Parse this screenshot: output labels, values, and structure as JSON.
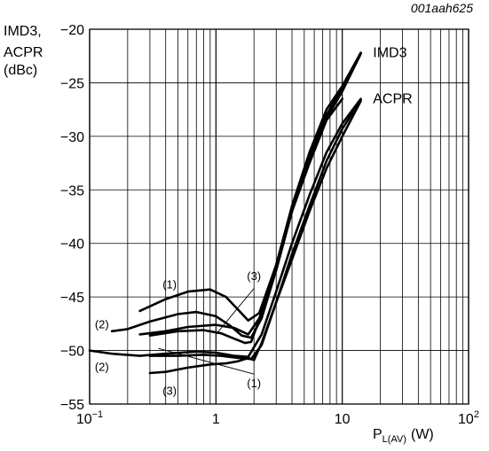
{
  "header": {
    "doc_id": "001aah625"
  },
  "chart_data": {
    "type": "line",
    "ylabel_lines": [
      "IMD3,",
      "ACPR",
      "(dBc)"
    ],
    "xlabel_main": "P",
    "xlabel_sub": "L(AV)",
    "xlabel_unit": "(W)",
    "x_scale": "log",
    "xlim": [
      0.1,
      100
    ],
    "ylim": [
      -55,
      -20
    ],
    "x_ticks": [
      {
        "value": 0.1,
        "base": "10",
        "exp": "−1"
      },
      {
        "value": 1,
        "base": "1",
        "exp": ""
      },
      {
        "value": 10,
        "base": "10",
        "exp": ""
      },
      {
        "value": 100,
        "base": "10",
        "exp": "2"
      }
    ],
    "y_ticks": [
      {
        "value": -20,
        "label": "−20"
      },
      {
        "value": -25,
        "label": "−25"
      },
      {
        "value": -30,
        "label": "−30"
      },
      {
        "value": -35,
        "label": "−35"
      },
      {
        "value": -40,
        "label": "−40"
      },
      {
        "value": -45,
        "label": "−45"
      },
      {
        "value": -50,
        "label": "−50"
      },
      {
        "value": -55,
        "label": "−55"
      }
    ],
    "grid": true,
    "series": [
      {
        "group": "IMD3",
        "curve": "(1)",
        "x": [
          0.25,
          0.4,
          0.6,
          0.9,
          1.2,
          1.5,
          1.8,
          2.2,
          3,
          4,
          5.5,
          7.5,
          10,
          14
        ],
        "y": [
          -46.3,
          -45.2,
          -44.5,
          -44.3,
          -45.0,
          -46.2,
          -47.2,
          -46.5,
          -42,
          -36.5,
          -31.5,
          -27.5,
          -25.3,
          -22.2
        ]
      },
      {
        "group": "IMD3",
        "curve": "(2)",
        "x": [
          0.15,
          0.2,
          0.3,
          0.5,
          0.7,
          1.0,
          1.3,
          1.6,
          1.9,
          2.3,
          3,
          4,
          5.5,
          7.5,
          10,
          14
        ],
        "y": [
          -48.2,
          -48.0,
          -47.3,
          -46.6,
          -46.4,
          -46.8,
          -47.7,
          -48.6,
          -48.8,
          -47.0,
          -42.5,
          -37,
          -32,
          -28,
          -25.5,
          -22.2
        ]
      },
      {
        "group": "IMD3",
        "curve": "(3)",
        "x": [
          0.25,
          0.4,
          0.6,
          1.0,
          1.4,
          1.8,
          2.2,
          3,
          4,
          5.5,
          7.5,
          10,
          14
        ],
        "y": [
          -48.5,
          -48.2,
          -47.8,
          -47.6,
          -47.9,
          -48.5,
          -47.0,
          -42.5,
          -37,
          -32.3,
          -28.3,
          -25.8,
          -22.3
        ]
      },
      {
        "group": "IMD3",
        "curve": "(2)",
        "x": [
          0.3,
          0.5,
          0.8,
          1.1,
          1.4,
          1.7,
          1.9,
          2.3,
          3,
          4,
          5.5,
          7.5,
          10
        ],
        "y": [
          -48.6,
          -48.2,
          -48.1,
          -48.4,
          -48.9,
          -49.3,
          -49.2,
          -46.5,
          -42,
          -37,
          -32.5,
          -28.5,
          -26.5
        ]
      },
      {
        "group": "ACPR",
        "curve": "(2)",
        "x": [
          0.1,
          0.15,
          0.25,
          0.4,
          0.7,
          1.0,
          1.4,
          1.8,
          2.3,
          3,
          4,
          5.5,
          7.5,
          10,
          14
        ],
        "y": [
          -50.0,
          -50.3,
          -50.5,
          -50.3,
          -50.1,
          -50.2,
          -50.5,
          -50.6,
          -48.5,
          -44.5,
          -40,
          -35.5,
          -31.5,
          -28.8,
          -26.5
        ]
      },
      {
        "group": "ACPR",
        "curve": "(1)",
        "x": [
          0.3,
          0.5,
          0.8,
          1.1,
          1.5,
          1.9,
          2.3,
          3,
          4,
          5.5,
          7.5,
          10,
          14
        ],
        "y": [
          -50.5,
          -50.5,
          -50.4,
          -50.5,
          -50.7,
          -50.8,
          -49.5,
          -45.5,
          -41,
          -36.5,
          -32.3,
          -29.3,
          -26.6
        ]
      },
      {
        "group": "ACPR",
        "curve": "(3)",
        "x": [
          0.3,
          0.4,
          0.6,
          0.9,
          1.2,
          1.5,
          1.8,
          2.0,
          2.3,
          3,
          4,
          5.5,
          7.5,
          10,
          14
        ],
        "y": [
          -52.1,
          -52.0,
          -51.6,
          -51.3,
          -51.2,
          -51.0,
          -50.7,
          -50.9,
          -49.3,
          -45.5,
          -41.5,
          -37,
          -33,
          -30,
          -26.7
        ]
      }
    ],
    "annotations": [
      {
        "text": "IMD3",
        "x": 17.5,
        "y": -22.2
      },
      {
        "text": "ACPR",
        "x": 17.5,
        "y": -26.5
      },
      {
        "text": "(1)",
        "x": 0.43,
        "y": -43.8
      },
      {
        "text": "(3)",
        "x": 2.0,
        "y": -43.0
      },
      {
        "text": "(2)",
        "x": 0.125,
        "y": -47.5
      },
      {
        "text": "(2)",
        "x": 0.125,
        "y": -51.5
      },
      {
        "text": "(3)",
        "x": 0.43,
        "y": -53.7
      },
      {
        "text": "(1)",
        "x": 2.0,
        "y": -53.0
      }
    ],
    "leader_lines": [
      {
        "from": [
          1.0,
          -48.5
        ],
        "to": [
          2.0,
          -44.2
        ]
      },
      {
        "from": [
          0.35,
          -49.8
        ],
        "to": [
          2.0,
          -52.2
        ]
      }
    ]
  }
}
